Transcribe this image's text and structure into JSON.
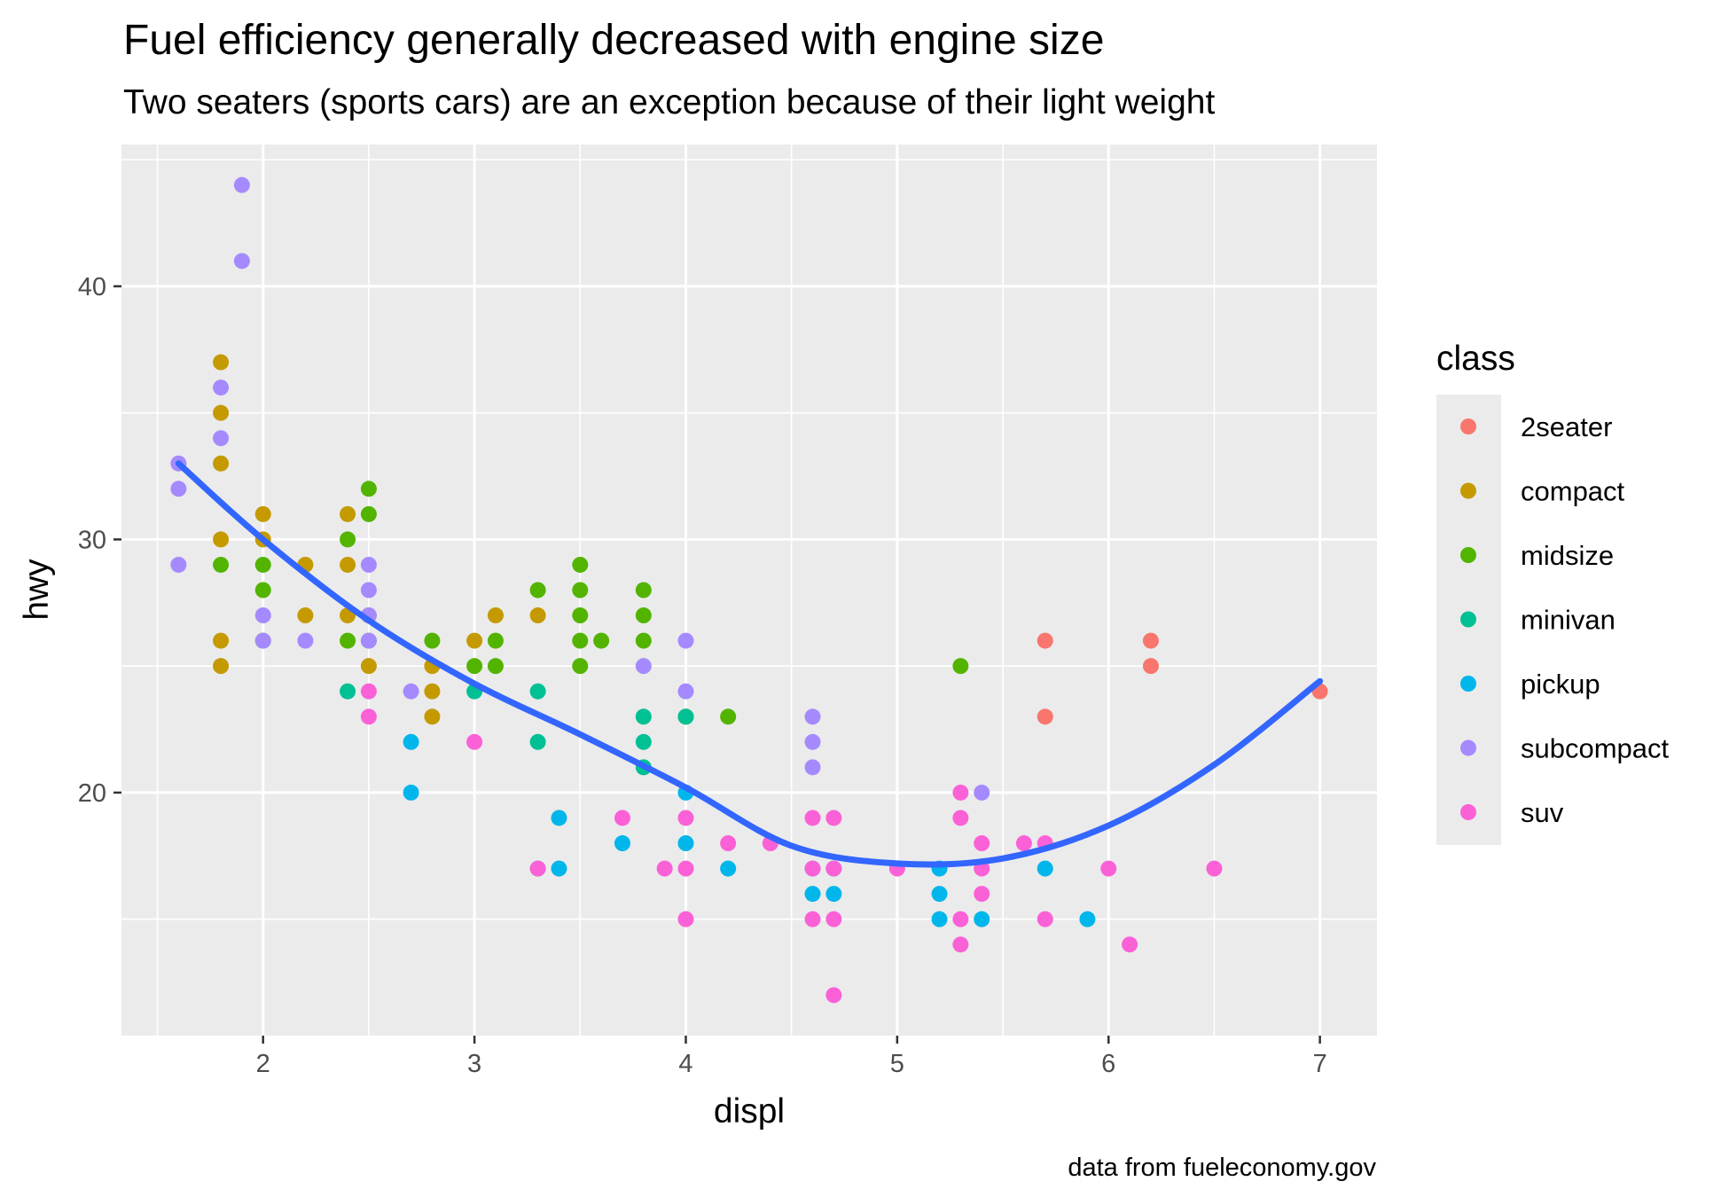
{
  "chart_data": {
    "type": "scatter",
    "title": "Fuel efficiency generally decreased with engine size",
    "subtitle": "Two seaters (sports cars) are an exception because of their light weight",
    "caption": "data from fueleconomy.gov",
    "xlabel": "displ",
    "ylabel": "hwy",
    "xlim": [
      1.33,
      7.27
    ],
    "ylim": [
      10.4,
      45.6
    ],
    "x_ticks": [
      2,
      3,
      4,
      5,
      6,
      7
    ],
    "y_ticks": [
      20,
      30,
      40
    ],
    "grid": true,
    "legend": {
      "title": "class",
      "placement": "right"
    },
    "series": [
      {
        "name": "2seater",
        "color": "#F8766D",
        "points": [
          [
            5.7,
            26
          ],
          [
            5.7,
            23
          ],
          [
            6.2,
            26
          ],
          [
            6.2,
            25
          ],
          [
            7.0,
            24
          ]
        ]
      },
      {
        "name": "compact",
        "color": "#C49A00",
        "points": [
          [
            1.8,
            37
          ],
          [
            1.8,
            35
          ],
          [
            1.8,
            33
          ],
          [
            1.8,
            30
          ],
          [
            1.8,
            26
          ],
          [
            1.8,
            25
          ],
          [
            2.0,
            31
          ],
          [
            2.0,
            30
          ],
          [
            2.2,
            29
          ],
          [
            2.2,
            27
          ],
          [
            2.4,
            31
          ],
          [
            2.4,
            29
          ],
          [
            2.4,
            27
          ],
          [
            2.5,
            27
          ],
          [
            2.5,
            25
          ],
          [
            2.8,
            25
          ],
          [
            2.8,
            24
          ],
          [
            2.8,
            23
          ],
          [
            3.0,
            26
          ],
          [
            3.1,
            27
          ],
          [
            3.3,
            27
          ]
        ]
      },
      {
        "name": "midsize",
        "color": "#53B400",
        "points": [
          [
            1.8,
            29
          ],
          [
            2.0,
            29
          ],
          [
            2.0,
            28
          ],
          [
            2.0,
            26
          ],
          [
            2.4,
            30
          ],
          [
            2.4,
            26
          ],
          [
            2.5,
            32
          ],
          [
            2.5,
            31
          ],
          [
            2.5,
            26
          ],
          [
            2.8,
            26
          ],
          [
            3.0,
            25
          ],
          [
            3.1,
            26
          ],
          [
            3.1,
            25
          ],
          [
            3.3,
            28
          ],
          [
            3.5,
            29
          ],
          [
            3.5,
            28
          ],
          [
            3.5,
            27
          ],
          [
            3.5,
            26
          ],
          [
            3.5,
            25
          ],
          [
            3.6,
            26
          ],
          [
            3.8,
            28
          ],
          [
            3.8,
            27
          ],
          [
            3.8,
            26
          ],
          [
            4.0,
            23
          ],
          [
            4.2,
            23
          ],
          [
            5.3,
            25
          ]
        ]
      },
      {
        "name": "minivan",
        "color": "#00C094",
        "points": [
          [
            2.4,
            24
          ],
          [
            3.0,
            24
          ],
          [
            3.3,
            24
          ],
          [
            3.3,
            22
          ],
          [
            3.3,
            17
          ],
          [
            3.8,
            23
          ],
          [
            3.8,
            22
          ],
          [
            3.8,
            21
          ],
          [
            4.0,
            23
          ]
        ]
      },
      {
        "name": "pickup",
        "color": "#00B6EB",
        "points": [
          [
            2.7,
            22
          ],
          [
            2.7,
            20
          ],
          [
            3.4,
            19
          ],
          [
            3.4,
            17
          ],
          [
            3.7,
            18
          ],
          [
            4.0,
            20
          ],
          [
            4.0,
            18
          ],
          [
            4.2,
            17
          ],
          [
            4.6,
            17
          ],
          [
            4.6,
            16
          ],
          [
            4.7,
            17
          ],
          [
            4.7,
            16
          ],
          [
            5.2,
            17
          ],
          [
            5.2,
            16
          ],
          [
            5.2,
            15
          ],
          [
            5.4,
            15
          ],
          [
            5.7,
            17
          ],
          [
            5.9,
            15
          ]
        ]
      },
      {
        "name": "subcompact",
        "color": "#A58AFF",
        "points": [
          [
            1.6,
            33
          ],
          [
            1.6,
            32
          ],
          [
            1.6,
            29
          ],
          [
            1.8,
            36
          ],
          [
            1.8,
            34
          ],
          [
            1.9,
            44
          ],
          [
            1.9,
            41
          ],
          [
            2.0,
            27
          ],
          [
            2.0,
            26
          ],
          [
            2.2,
            26
          ],
          [
            2.5,
            29
          ],
          [
            2.5,
            28
          ],
          [
            2.5,
            27
          ],
          [
            2.5,
            26
          ],
          [
            2.7,
            24
          ],
          [
            3.8,
            25
          ],
          [
            4.0,
            26
          ],
          [
            4.0,
            24
          ],
          [
            4.6,
            23
          ],
          [
            4.6,
            22
          ],
          [
            4.6,
            21
          ],
          [
            5.4,
            20
          ]
        ]
      },
      {
        "name": "suv",
        "color": "#FB61D7",
        "points": [
          [
            2.5,
            24
          ],
          [
            2.5,
            23
          ],
          [
            3.0,
            22
          ],
          [
            3.3,
            17
          ],
          [
            3.7,
            19
          ],
          [
            3.9,
            17
          ],
          [
            4.0,
            19
          ],
          [
            4.0,
            17
          ],
          [
            4.0,
            15
          ],
          [
            4.2,
            18
          ],
          [
            4.4,
            18
          ],
          [
            4.6,
            19
          ],
          [
            4.6,
            17
          ],
          [
            4.6,
            15
          ],
          [
            4.7,
            19
          ],
          [
            4.7,
            17
          ],
          [
            4.7,
            15
          ],
          [
            4.7,
            12
          ],
          [
            5.0,
            17
          ],
          [
            5.3,
            20
          ],
          [
            5.3,
            19
          ],
          [
            5.3,
            15
          ],
          [
            5.3,
            14
          ],
          [
            5.4,
            18
          ],
          [
            5.4,
            17
          ],
          [
            5.4,
            16
          ],
          [
            5.6,
            18
          ],
          [
            5.7,
            18
          ],
          [
            5.7,
            15
          ],
          [
            6.0,
            17
          ],
          [
            6.1,
            14
          ],
          [
            6.5,
            17
          ]
        ]
      }
    ],
    "smooth": {
      "color": "#3366FF",
      "points": [
        [
          1.6,
          33.0
        ],
        [
          2.0,
          30.0
        ],
        [
          2.5,
          26.8
        ],
        [
          3.0,
          24.3
        ],
        [
          3.5,
          22.3
        ],
        [
          4.0,
          20.2
        ],
        [
          4.5,
          17.9
        ],
        [
          5.0,
          17.2
        ],
        [
          5.5,
          17.4
        ],
        [
          6.0,
          18.7
        ],
        [
          6.5,
          21.1
        ],
        [
          7.0,
          24.4
        ]
      ]
    }
  }
}
